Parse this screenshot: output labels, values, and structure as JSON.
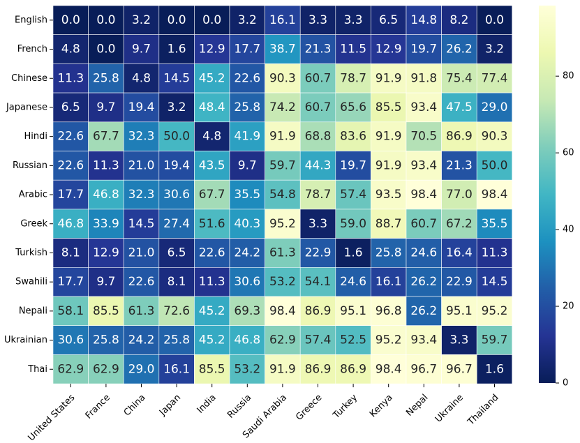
{
  "chart_data": {
    "type": "heatmap",
    "rows": [
      "English",
      "French",
      "Chinese",
      "Japanese",
      "Hindi",
      "Russian",
      "Arabic",
      "Greek",
      "Turkish",
      "Swahili",
      "Nepali",
      "Ukrainian",
      "Thai"
    ],
    "columns": [
      "United States",
      "France",
      "China",
      "Japan",
      "India",
      "Russia",
      "Saudi Arabia",
      "Greece",
      "Turkey",
      "Kenya",
      "Nepal",
      "Ukraine",
      "Thailand"
    ],
    "values": [
      [
        0.0,
        0.0,
        3.2,
        0.0,
        0.0,
        3.2,
        16.1,
        3.3,
        3.3,
        6.5,
        14.8,
        8.2,
        0.0
      ],
      [
        4.8,
        0.0,
        9.7,
        1.6,
        12.9,
        17.7,
        38.7,
        21.3,
        11.5,
        12.9,
        19.7,
        26.2,
        3.2
      ],
      [
        11.3,
        25.8,
        4.8,
        14.5,
        45.2,
        22.6,
        90.3,
        60.7,
        78.7,
        91.9,
        91.8,
        75.4,
        77.4
      ],
      [
        6.5,
        9.7,
        19.4,
        3.2,
        48.4,
        25.8,
        74.2,
        60.7,
        65.6,
        85.5,
        93.4,
        47.5,
        29.0
      ],
      [
        22.6,
        67.7,
        32.3,
        50.0,
        4.8,
        41.9,
        91.9,
        68.8,
        83.6,
        91.9,
        70.5,
        86.9,
        90.3
      ],
      [
        22.6,
        11.3,
        21.0,
        19.4,
        43.5,
        9.7,
        59.7,
        44.3,
        19.7,
        91.9,
        93.4,
        21.3,
        50.0
      ],
      [
        17.7,
        46.8,
        32.3,
        30.6,
        67.7,
        35.5,
        54.8,
        78.7,
        57.4,
        93.5,
        98.4,
        77.0,
        98.4
      ],
      [
        46.8,
        33.9,
        14.5,
        27.4,
        51.6,
        40.3,
        95.2,
        3.3,
        59.0,
        88.7,
        60.7,
        67.2,
        35.5
      ],
      [
        8.1,
        12.9,
        21.0,
        6.5,
        22.6,
        24.2,
        61.3,
        22.9,
        1.6,
        25.8,
        24.6,
        16.4,
        11.3
      ],
      [
        17.7,
        9.7,
        22.6,
        8.1,
        11.3,
        30.6,
        53.2,
        54.1,
        24.6,
        16.1,
        26.2,
        22.9,
        14.5
      ],
      [
        58.1,
        85.5,
        61.3,
        72.6,
        45.2,
        69.3,
        98.4,
        86.9,
        95.1,
        96.8,
        26.2,
        95.1,
        95.2
      ],
      [
        30.6,
        25.8,
        24.2,
        25.8,
        45.2,
        46.8,
        62.9,
        57.4,
        52.5,
        95.2,
        93.4,
        3.3,
        59.7
      ],
      [
        62.9,
        62.9,
        29.0,
        16.1,
        85.5,
        53.2,
        91.9,
        86.9,
        86.9,
        98.4,
        96.7,
        96.7,
        1.6
      ]
    ],
    "value_format": "one decimal",
    "colormap": "YlGnBu",
    "vmin": 0,
    "vmax": 98.4,
    "colorbar_ticks": [
      0,
      20,
      40,
      60,
      80
    ],
    "title": "",
    "xlabel": "",
    "ylabel": ""
  }
}
